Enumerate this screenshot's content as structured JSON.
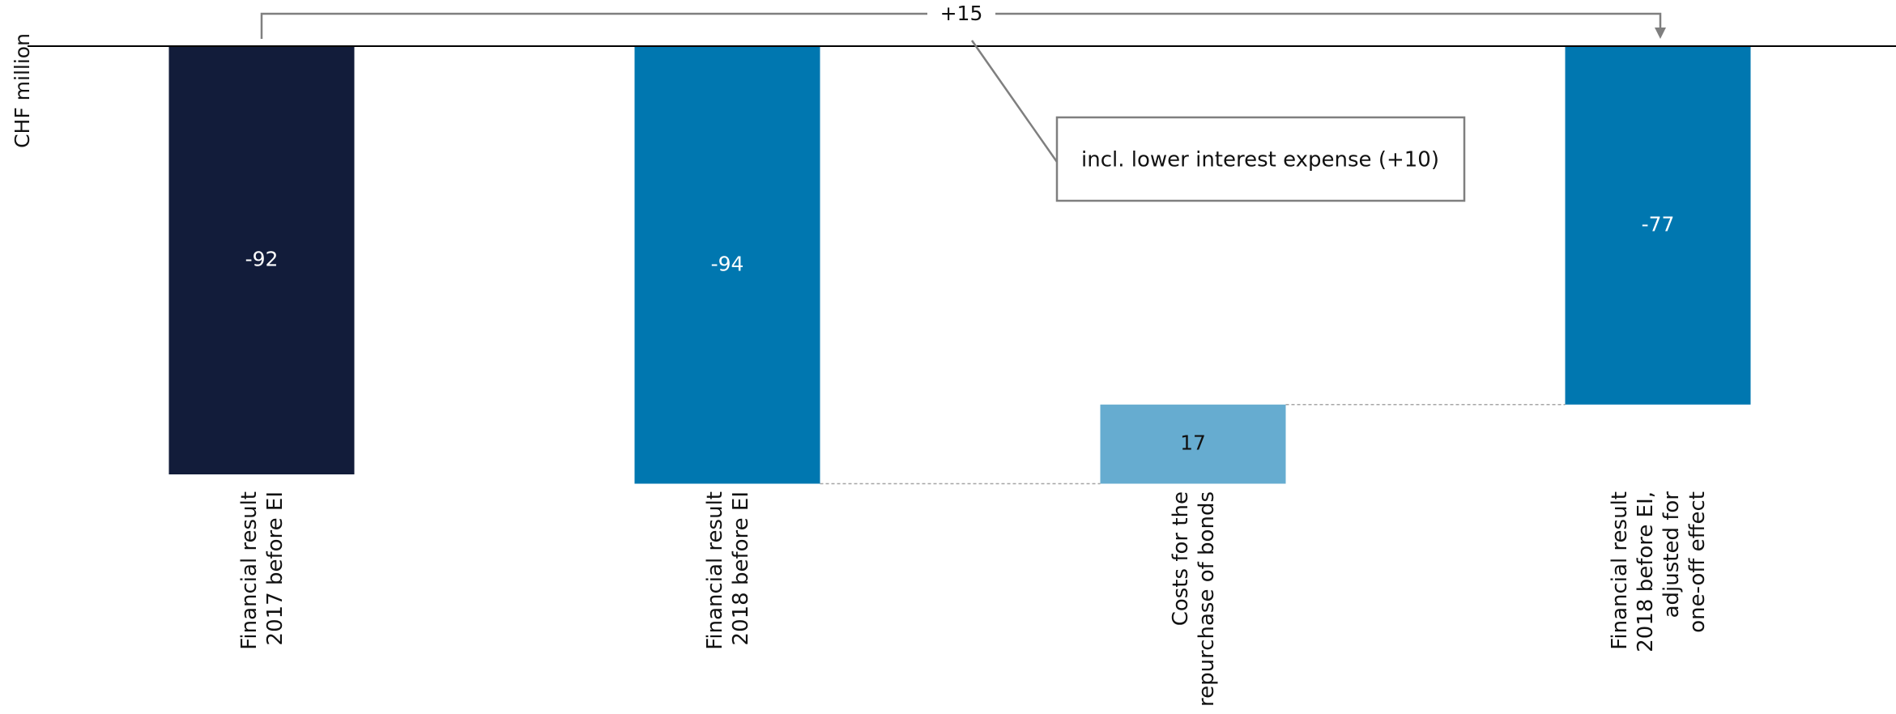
{
  "chart_data": {
    "type": "bar",
    "subtype": "waterfall",
    "ylabel": "CHF million",
    "categories": [
      [
        "Financial result",
        "2017 before EI"
      ],
      [
        "Financial result",
        "2018 before EI"
      ],
      [
        "Costs for the",
        "repurchase of bonds"
      ],
      [
        "Financial result",
        "2018 before EI,",
        "adjusted for",
        "one-off effect"
      ]
    ],
    "values": [
      -92,
      -94,
      17,
      -77
    ],
    "value_labels": [
      "-92",
      "-94",
      "17",
      "-77"
    ],
    "bar_kind": [
      "total",
      "total",
      "delta",
      "total"
    ],
    "colors": [
      "#121c3a",
      "#0077b0",
      "#66acd0",
      "#0077b0"
    ],
    "label_colors": [
      "#ffffff",
      "#ffffff",
      "#111111",
      "#ffffff"
    ],
    "connectors": [
      [
        1,
        2
      ],
      [
        2,
        3
      ]
    ],
    "bridge": {
      "from": 0,
      "to": 3,
      "label": "+15"
    },
    "annotation": {
      "text": "incl. lower interest expense (+10)"
    }
  }
}
